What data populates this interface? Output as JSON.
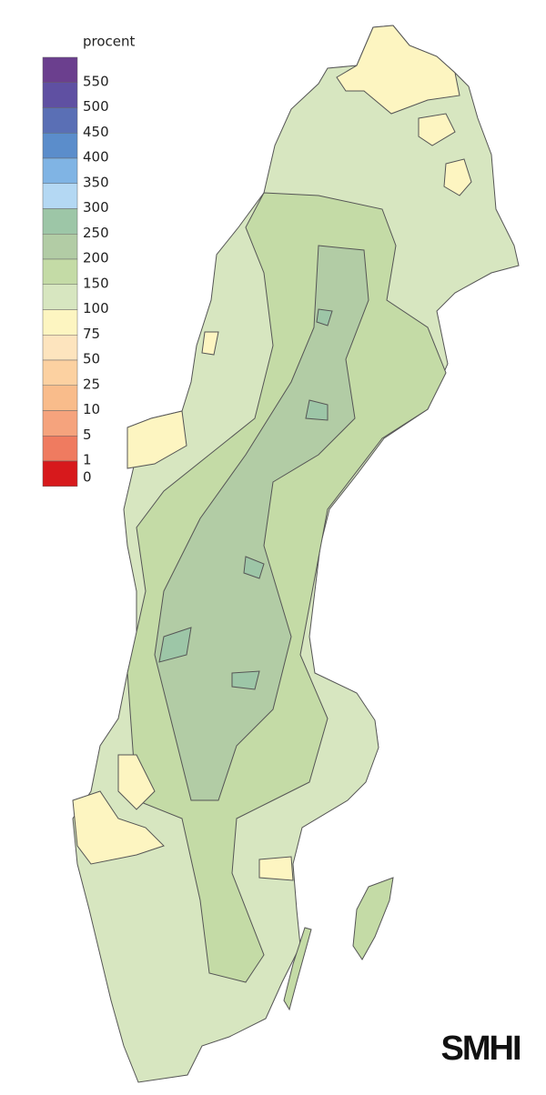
{
  "legend": {
    "title": "procent",
    "classes": [
      {
        "label": "550",
        "color": "#6b3f8e"
      },
      {
        "label": "500",
        "color": "#5f50a2"
      },
      {
        "label": "450",
        "color": "#5a6fb5"
      },
      {
        "label": "400",
        "color": "#5b8dcb"
      },
      {
        "label": "350",
        "color": "#80b4e4"
      },
      {
        "label": "300",
        "color": "#b4d8f3"
      },
      {
        "label": "250",
        "color": "#9dc6a7"
      },
      {
        "label": "200",
        "color": "#b2cca5"
      },
      {
        "label": "150",
        "color": "#c4dba6"
      },
      {
        "label": "100",
        "color": "#d7e6c0"
      },
      {
        "label": "75",
        "color": "#fdf5c1"
      },
      {
        "label": "50",
        "color": "#fde4be"
      },
      {
        "label": "25",
        "color": "#fcd1a1"
      },
      {
        "label": "10",
        "color": "#f9bc8b"
      },
      {
        "label": "5",
        "color": "#f5a37d"
      },
      {
        "label": "1",
        "color": "#ef7b60"
      },
      {
        "label": "0",
        "color": "#d7191c"
      }
    ]
  },
  "logo": "SMHI"
}
